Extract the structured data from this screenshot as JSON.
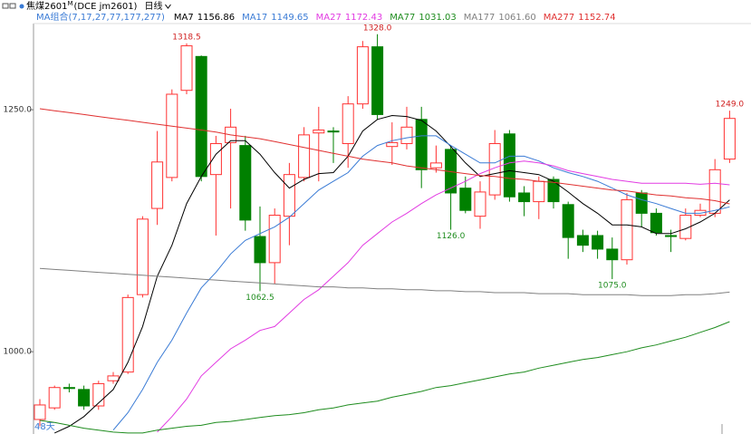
{
  "header": {
    "symbol": "焦煤2601",
    "superscript": "M",
    "code": "(DCE jm2601)",
    "period": "日线"
  },
  "chart_data": {
    "type": "candlestick",
    "ma_group": "MA组合(7,17,27,77,177,277)",
    "days_label": "48天",
    "up_color": "#ff3232",
    "down_color": "#008000",
    "ylim": [
      915,
      1339
    ],
    "yticks": [
      {
        "value": 1250,
        "label": "1250.0"
      },
      {
        "value": 1000,
        "label": "1000.0"
      }
    ],
    "open": [
      930,
      942,
      963,
      961,
      944,
      970,
      979,
      1059,
      1148,
      1180,
      1270,
      1305,
      1183,
      1216,
      1213,
      1119,
      1092,
      1140,
      1180,
      1226,
      1228,
      1215,
      1256,
      1315,
      1212,
      1215,
      1240,
      1190,
      1209,
      1169,
      1140,
      1162,
      1225,
      1164,
      1155,
      1178,
      1152,
      1120,
      1120,
      1106,
      1095,
      1164,
      1143,
      1120,
      1117,
      1141,
      1143,
      1199
    ],
    "high": [
      951,
      965,
      967,
      965,
      970,
      979,
      1059,
      1140,
      1228,
      1271,
      1318.5,
      1306,
      1223,
      1251,
      1223,
      1150,
      1148,
      1195,
      1232,
      1253,
      1232,
      1264,
      1321,
      1328,
      1237,
      1253,
      1253,
      1213,
      1213,
      1181,
      1176,
      1229,
      1229,
      1171,
      1181,
      1181,
      1155,
      1126,
      1125,
      1118,
      1164,
      1167,
      1148,
      1126,
      1148,
      1153,
      1199,
      1249
    ],
    "low": [
      923,
      940,
      958,
      940,
      940,
      967,
      977,
      1056,
      1131,
      1176,
      1266,
      1176,
      1120,
      1148,
      1125,
      1062.5,
      1070,
      1110,
      1176,
      1176,
      1195,
      1190,
      1251,
      1240,
      1193,
      1209,
      1169,
      1185,
      1126,
      1143,
      1127,
      1157,
      1155,
      1140,
      1137,
      1148,
      1096,
      1103,
      1096,
      1075,
      1090,
      1129,
      1120,
      1103,
      1115,
      1139,
      1139,
      1195
    ],
    "close": [
      945,
      963,
      962,
      944,
      967,
      975,
      1056,
      1137,
      1196,
      1266,
      1316,
      1181,
      1215,
      1232,
      1136,
      1092,
      1141,
      1183,
      1224,
      1229,
      1227,
      1256,
      1315,
      1245,
      1216,
      1232,
      1188,
      1195,
      1164,
      1146,
      1165,
      1215,
      1160,
      1155,
      1176,
      1155,
      1118,
      1110,
      1106,
      1095,
      1157,
      1143,
      1123,
      1119,
      1141,
      1146,
      1188,
      1241
    ],
    "high_labels": [
      null,
      null,
      null,
      null,
      null,
      null,
      null,
      null,
      null,
      null,
      "1318.5",
      null,
      null,
      null,
      null,
      null,
      null,
      null,
      null,
      null,
      null,
      null,
      null,
      "1328.0",
      null,
      null,
      null,
      null,
      null,
      null,
      null,
      null,
      null,
      null,
      null,
      null,
      null,
      null,
      null,
      null,
      null,
      null,
      null,
      null,
      null,
      null,
      null,
      "1249.0"
    ],
    "low_labels": [
      null,
      null,
      null,
      null,
      null,
      null,
      null,
      null,
      null,
      null,
      null,
      null,
      null,
      null,
      null,
      "1062.5",
      null,
      null,
      null,
      null,
      null,
      null,
      null,
      null,
      null,
      null,
      null,
      null,
      "1126.0",
      null,
      null,
      null,
      null,
      null,
      null,
      null,
      null,
      null,
      null,
      "1075.0",
      null,
      null,
      null,
      null,
      null,
      null,
      null,
      null
    ],
    "series": [
      {
        "name": "MA7",
        "color": "#000000",
        "current": 1156.86,
        "values": [
          null,
          916,
          923,
          933,
          947,
          961,
          989,
          1026,
          1078,
          1110,
          1153,
          1181,
          1204,
          1218,
          1218,
          1204,
          1185,
          1169,
          1178,
          1184,
          1185,
          1202,
          1228,
          1240,
          1244,
          1243,
          1239,
          1228,
          1212,
          1195,
          1181,
          1184,
          1187,
          1185,
          1183,
          1176,
          1165,
          1153,
          1143,
          1131,
          1131,
          1129,
          1122,
          1122,
          1127,
          1134,
          1143,
          1156.86
        ]
      },
      {
        "name": "MA17",
        "color": "#3a7bd5",
        "current": 1149.65,
        "values": [
          null,
          null,
          null,
          null,
          null,
          919,
          937,
          961,
          989,
          1012,
          1040,
          1066,
          1082,
          1101,
          1115,
          1122,
          1129,
          1139,
          1153,
          1167,
          1176,
          1185,
          1202,
          1213,
          1218,
          1221,
          1223,
          1223,
          1213,
          1204,
          1195,
          1195,
          1202,
          1202,
          1197,
          1190,
          1185,
          1181,
          1176,
          1169,
          1162,
          1157,
          1153,
          1148,
          1143,
          1143,
          1146,
          1149.65
        ]
      },
      {
        "name": "MA27",
        "color": "#e23be2",
        "current": 1172.43,
        "values": [
          null,
          null,
          null,
          null,
          null,
          null,
          null,
          null,
          917,
          933,
          951,
          975,
          989,
          1003,
          1012,
          1022,
          1026,
          1040,
          1054,
          1064,
          1078,
          1092,
          1110,
          1122,
          1134,
          1143,
          1153,
          1162,
          1169,
          1176,
          1184,
          1190,
          1195,
          1197,
          1195,
          1192,
          1187,
          1184,
          1181,
          1178,
          1176,
          1174,
          1174,
          1174,
          1174,
          1173,
          1174,
          1172.43
        ]
      },
      {
        "name": "MA77",
        "color": "#1e8c1e",
        "current": 1031.03,
        "values": [
          929,
          927,
          924,
          921,
          919,
          917,
          916,
          916,
          919,
          921,
          923,
          924,
          927,
          928,
          930,
          932,
          934,
          935,
          937,
          940,
          942,
          945,
          947,
          949,
          953,
          956,
          959,
          963,
          965,
          968,
          971,
          974,
          977,
          979,
          983,
          986,
          989,
          992,
          994,
          997,
          1000,
          1004,
          1007,
          1011,
          1015,
          1020,
          1025,
          1031.03
        ]
      },
      {
        "name": "MA177",
        "color": "#808080",
        "current": {
          "value": 1061.6,
          "label": "1061.60"
        },
        "values": [
          1086,
          1085,
          1084,
          1083,
          1082,
          1081,
          1080,
          1079,
          1078,
          1077,
          1076,
          1075,
          1074,
          1073,
          1072,
          1071,
          1070,
          1069,
          1068,
          1067,
          1067,
          1066,
          1066,
          1065,
          1065,
          1064,
          1064,
          1063,
          1063,
          1062,
          1062,
          1061,
          1061,
          1061,
          1060,
          1060,
          1060,
          1059,
          1059,
          1059,
          1059,
          1058,
          1058,
          1058,
          1059,
          1059,
          1060,
          1061.6
        ]
      },
      {
        "name": "MA277",
        "color": "#e03030",
        "current": 1152.74,
        "values": [
          1251,
          1249,
          1247,
          1245,
          1243,
          1241,
          1239,
          1237,
          1235,
          1233,
          1231,
          1229,
          1227,
          1224,
          1222,
          1220,
          1217,
          1214,
          1211,
          1208,
          1205,
          1202,
          1199,
          1197,
          1195,
          1192,
          1190,
          1188,
          1186,
          1184,
          1182,
          1181,
          1179,
          1178,
          1176,
          1175,
          1173,
          1171,
          1169,
          1167,
          1166,
          1164,
          1162,
          1161,
          1159,
          1158,
          1156,
          1152.74
        ]
      }
    ]
  }
}
